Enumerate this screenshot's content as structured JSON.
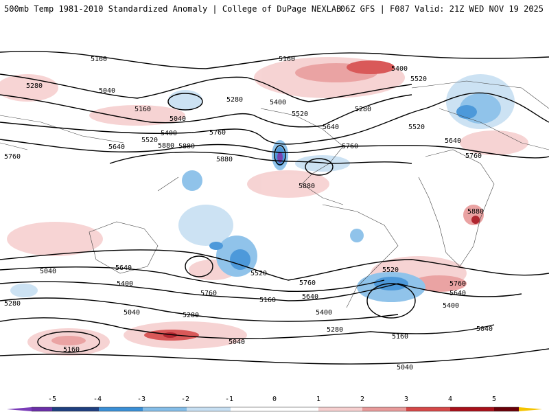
{
  "header": {
    "left": "500mb Temp 1981-2010 Standardized Anomaly | College of DuPage NEXLAB",
    "right": "06Z GFS | F087 Valid: 21Z WED NOV 19 2025"
  },
  "contour_labels": [
    "5160",
    "5280",
    "5040",
    "5160",
    "5400",
    "5520",
    "5640",
    "5760",
    "5880",
    "5280",
    "5400",
    "5520",
    "5640",
    "5760",
    "5880",
    "5760",
    "5640",
    "5520",
    "5400",
    "5280",
    "5040",
    "5160",
    "5040",
    "5280",
    "5520",
    "5760",
    "5640",
    "5400",
    "5160",
    "5040",
    "5280",
    "5640",
    "5760",
    "5520",
    "5400",
    "5280",
    "5040",
    "5160",
    "5040",
    "5880",
    "5760",
    "5640",
    "5520",
    "5400",
    "5040",
    "5160",
    "5880",
    "5880",
    "5760"
  ],
  "colorbar": {
    "ticks": [
      "-5",
      "-4",
      "-3",
      "-2",
      "-1",
      "0",
      "1",
      "2",
      "3",
      "4",
      "5"
    ],
    "colors": [
      "#6b2fa8",
      "#1f3f80",
      "#3a8fd6",
      "#84bde8",
      "#c7dff2",
      "#ffffff",
      "#f6cfcf",
      "#e89a9a",
      "#d54848",
      "#a8101a",
      "#6a0008"
    ],
    "end_low": "#7a3cb8",
    "end_high": "#f5c400"
  }
}
